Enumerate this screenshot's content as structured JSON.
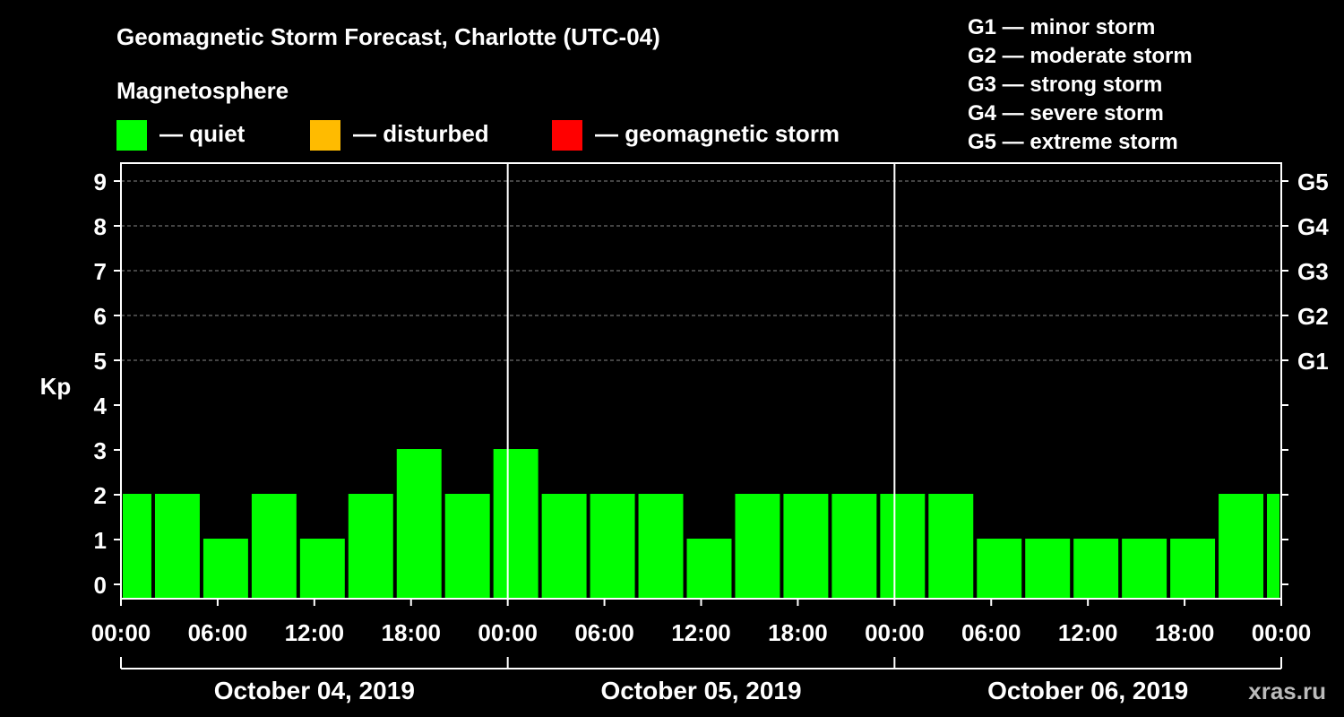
{
  "chart_data": {
    "type": "bar",
    "title": "Geomagnetic Storm Forecast, Charlotte (UTC-04)",
    "legend_title": "Magnetosphere",
    "legend": [
      {
        "label": "— quiet",
        "color": "#00ff00"
      },
      {
        "label": "— disturbed",
        "color": "#ffbb00"
      },
      {
        "label": "— geomagnetic storm",
        "color": "#ff0000"
      }
    ],
    "storm_scale": [
      "G1 — minor storm",
      "G2 — moderate storm",
      "G3 — strong storm",
      "G4 — severe storm",
      "G5 — extreme storm"
    ],
    "ylabel": "Kp",
    "ylim": [
      0,
      9
    ],
    "yticks": [
      "0",
      "1",
      "2",
      "3",
      "4",
      "5",
      "6",
      "7",
      "8",
      "9"
    ],
    "right_ticks": [
      {
        "kp": 5,
        "label": "G1"
      },
      {
        "kp": 6,
        "label": "G2"
      },
      {
        "kp": 7,
        "label": "G3"
      },
      {
        "kp": 8,
        "label": "G4"
      },
      {
        "kp": 9,
        "label": "G5"
      }
    ],
    "grid_kp": [
      5,
      6,
      7,
      8,
      9
    ],
    "x_hours_range": [
      0,
      72
    ],
    "day_boundaries_hours": [
      24,
      48
    ],
    "xtick_hours": [
      0,
      6,
      12,
      18,
      24,
      30,
      36,
      42,
      48,
      54,
      60,
      66,
      72
    ],
    "xtick_labels": [
      "00:00",
      "06:00",
      "12:00",
      "18:00",
      "00:00",
      "06:00",
      "12:00",
      "18:00",
      "00:00",
      "06:00",
      "12:00",
      "18:00",
      "00:00"
    ],
    "days": [
      {
        "label": "October 04, 2019",
        "start_hour": 0,
        "end_hour": 24
      },
      {
        "label": "October 05, 2019",
        "start_hour": 24,
        "end_hour": 48
      },
      {
        "label": "October 06, 2019",
        "start_hour": 48,
        "end_hour": 72
      }
    ],
    "bars": [
      {
        "start_hour": 0,
        "end_hour": 2,
        "kp": 2,
        "level": "quiet"
      },
      {
        "start_hour": 2,
        "end_hour": 5,
        "kp": 2,
        "level": "quiet"
      },
      {
        "start_hour": 5,
        "end_hour": 8,
        "kp": 1,
        "level": "quiet"
      },
      {
        "start_hour": 8,
        "end_hour": 11,
        "kp": 2,
        "level": "quiet"
      },
      {
        "start_hour": 11,
        "end_hour": 14,
        "kp": 1,
        "level": "quiet"
      },
      {
        "start_hour": 14,
        "end_hour": 17,
        "kp": 2,
        "level": "quiet"
      },
      {
        "start_hour": 17,
        "end_hour": 20,
        "kp": 3,
        "level": "quiet"
      },
      {
        "start_hour": 20,
        "end_hour": 23,
        "kp": 2,
        "level": "quiet"
      },
      {
        "start_hour": 23,
        "end_hour": 26,
        "kp": 3,
        "level": "quiet"
      },
      {
        "start_hour": 26,
        "end_hour": 29,
        "kp": 2,
        "level": "quiet"
      },
      {
        "start_hour": 29,
        "end_hour": 32,
        "kp": 2,
        "level": "quiet"
      },
      {
        "start_hour": 32,
        "end_hour": 35,
        "kp": 2,
        "level": "quiet"
      },
      {
        "start_hour": 35,
        "end_hour": 38,
        "kp": 1,
        "level": "quiet"
      },
      {
        "start_hour": 38,
        "end_hour": 41,
        "kp": 2,
        "level": "quiet"
      },
      {
        "start_hour": 41,
        "end_hour": 44,
        "kp": 2,
        "level": "quiet"
      },
      {
        "start_hour": 44,
        "end_hour": 47,
        "kp": 2,
        "level": "quiet"
      },
      {
        "start_hour": 47,
        "end_hour": 50,
        "kp": 2,
        "level": "quiet"
      },
      {
        "start_hour": 50,
        "end_hour": 53,
        "kp": 2,
        "level": "quiet"
      },
      {
        "start_hour": 53,
        "end_hour": 56,
        "kp": 1,
        "level": "quiet"
      },
      {
        "start_hour": 56,
        "end_hour": 59,
        "kp": 1,
        "level": "quiet"
      },
      {
        "start_hour": 59,
        "end_hour": 62,
        "kp": 1,
        "level": "quiet"
      },
      {
        "start_hour": 62,
        "end_hour": 65,
        "kp": 1,
        "level": "quiet"
      },
      {
        "start_hour": 65,
        "end_hour": 68,
        "kp": 1,
        "level": "quiet"
      },
      {
        "start_hour": 68,
        "end_hour": 71,
        "kp": 2,
        "level": "quiet"
      },
      {
        "start_hour": 71,
        "end_hour": 72,
        "kp": 2,
        "level": "quiet"
      }
    ],
    "colors": {
      "quiet": "#00ff00",
      "disturbed": "#ffbb00",
      "storm": "#ff0000",
      "background": "#000000",
      "grid": "#888888"
    },
    "watermark": "xras.ru"
  }
}
